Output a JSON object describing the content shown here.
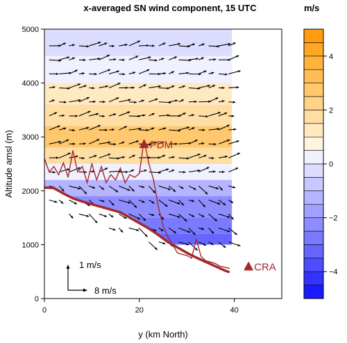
{
  "chart_data": {
    "type": "contour",
    "title": "x-averaged SN wind component, 15 UTC",
    "xlabel": "y (km North)",
    "ylabel": "Altitude amsl (m)",
    "xlim": [
      0,
      50
    ],
    "ylim": [
      0,
      5000
    ],
    "xticks": [
      0,
      20,
      40
    ],
    "yticks": [
      0,
      1000,
      2000,
      3000,
      4000,
      5000
    ],
    "colorbar": {
      "unit": "m/s",
      "min": -5,
      "max": 5,
      "ticks": [
        -4,
        -2,
        0,
        2,
        4
      ],
      "levels": [
        -5,
        -4.5,
        -4,
        -3.5,
        -3,
        -2.5,
        -2,
        -1.5,
        -1,
        -0.5,
        0,
        0.5,
        1,
        1.5,
        2,
        2.5,
        3,
        3.5,
        4,
        4.5,
        5
      ],
      "colors": [
        "#1a1aff",
        "#3333ff",
        "#4d4dff",
        "#6666ff",
        "#7a7aff",
        "#8d8dff",
        "#a0a0ff",
        "#b4b4ff",
        "#c8c8ff",
        "#dcdcff",
        "#f0f0ff",
        "#fff4df",
        "#ffe9c1",
        "#ffdea3",
        "#ffd388",
        "#ffc86e",
        "#ffbd55",
        "#ffb23c",
        "#ffa725",
        "#ff9c10"
      ]
    },
    "field_bands": [
      {
        "from": 5000,
        "to": 4500,
        "value": -0.5
      },
      {
        "from": 4500,
        "to": 4000,
        "value": 0.3
      },
      {
        "from": 4000,
        "to": 3600,
        "value": 1.0
      },
      {
        "from": 3600,
        "to": 3200,
        "value": 1.8
      },
      {
        "from": 3200,
        "to": 2800,
        "value": 2.8
      },
      {
        "from": 2800,
        "to": 2500,
        "value": 1.5
      },
      {
        "from": 2500,
        "to": 2200,
        "value": 0.4
      },
      {
        "from": 2200,
        "to": 1900,
        "value": -1.5
      },
      {
        "from": 1900,
        "to": 1500,
        "value": -2.5
      },
      {
        "from": 1500,
        "to": 1200,
        "value": -3.0
      },
      {
        "from": 1200,
        "to": 1000,
        "value": -3.5
      }
    ],
    "terrain_max": {
      "y": [
        0,
        1,
        2,
        3,
        4,
        5,
        6,
        7,
        8,
        9,
        10,
        11,
        12,
        13,
        14,
        15,
        16,
        17,
        18,
        19,
        20,
        21,
        22,
        23,
        24,
        25,
        26,
        27,
        28,
        29,
        30,
        31,
        32,
        33,
        34,
        35,
        36,
        37,
        38,
        39
      ],
      "alt": [
        2600,
        2350,
        2450,
        2300,
        2520,
        2250,
        2750,
        2350,
        2450,
        2150,
        2500,
        2200,
        2450,
        2150,
        2300,
        2200,
        2420,
        2150,
        2300,
        2250,
        2320,
        2950,
        2500,
        2200,
        1700,
        1350,
        1150,
        1000,
        850,
        820,
        800,
        750,
        1100,
        780,
        700,
        680,
        650,
        600,
        580,
        560
      ]
    },
    "terrain_mean": {
      "y": [
        0,
        2,
        4,
        6,
        8,
        10,
        12,
        14,
        16,
        18,
        20,
        22,
        24,
        26,
        28,
        30,
        32,
        34,
        36,
        38,
        39
      ],
      "alt": [
        2060,
        2050,
        1950,
        1860,
        1800,
        1750,
        1700,
        1650,
        1600,
        1500,
        1400,
        1300,
        1180,
        1050,
        950,
        850,
        760,
        680,
        600,
        520,
        490
      ]
    },
    "points": [
      {
        "label": "PDM",
        "y": 21,
        "alt": 2870
      },
      {
        "label": "CRA",
        "y": 43,
        "alt": 600
      }
    ],
    "vector_scale": {
      "vertical": "1 m/s",
      "horizontal": "8 m/s"
    }
  }
}
